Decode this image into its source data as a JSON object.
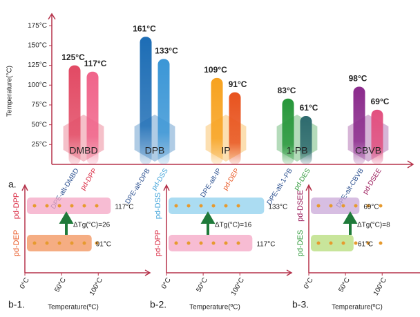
{
  "chart_data": [
    {
      "type": "bar",
      "panel_label": "a.",
      "y_label": "Temperature(°C)",
      "ylim": [
        0,
        190
      ],
      "yticks": [
        {
          "value": 25,
          "label": "25°C"
        },
        {
          "value": 50,
          "label": "50°C"
        },
        {
          "value": 75,
          "label": "75°C"
        },
        {
          "value": 100,
          "label": "100°C"
        },
        {
          "value": 125,
          "label": "125°C"
        },
        {
          "value": 150,
          "label": "150°C"
        },
        {
          "value": 175,
          "label": "175°C"
        }
      ],
      "categories": [
        "DPE-alt-DMBD",
        "pd-DPP",
        "DPE-alt-DPB",
        "pd-DSS",
        "DPE-alt-IP",
        "pd-DEP",
        "DPE-alt-1-PB",
        "pd-DES",
        "DPE-alt-CBVB",
        "pd-DSEE"
      ],
      "values": [
        125,
        117,
        161,
        133,
        109,
        91,
        83,
        61,
        98,
        69
      ],
      "value_labels": [
        "125°C",
        "117°C",
        "161°C",
        "133°C",
        "109°C",
        "91°C",
        "83°C",
        "61°C",
        "98°C",
        "69°C"
      ],
      "colors": [
        "#e24a64",
        "#f0648a",
        "#1d6db5",
        "#3b96d6",
        "#f7a21f",
        "#e8531e",
        "#27973a",
        "#2d6a6e",
        "#8b2b8c",
        "#e2507f"
      ],
      "label_colors": [
        "#2a4f8f",
        "#d8203a",
        "#2a4f8f",
        "#3aa0d8",
        "#2a4f8f",
        "#e8531e",
        "#2a4f8f",
        "#2f9a3a",
        "#2a4f8f",
        "#9a1a5a"
      ],
      "groups": [
        "DMBD",
        "DPB",
        "IP",
        "1-PB",
        "CBVB"
      ]
    },
    {
      "type": "hbar",
      "panel_label": "b-1.",
      "x_label": "Temperature(ºC)",
      "xlim": [
        0,
        160
      ],
      "xticks": [
        {
          "value": 0,
          "label": "0°C"
        },
        {
          "value": 50,
          "label": "50°C"
        },
        {
          "value": 100,
          "label": "100°C"
        }
      ],
      "categories": [
        "pd-DEP",
        "pd-DPP"
      ],
      "values": [
        91,
        117
      ],
      "value_labels": [
        "91°C",
        "117°C"
      ],
      "colors": [
        "#f2925a",
        "#f4a6c4"
      ],
      "label_colors": [
        "#e8531e",
        "#d8203a"
      ],
      "annotation": "ΔTg(°C)=26"
    },
    {
      "type": "hbar",
      "panel_label": "b-2.",
      "x_label": "Temperature(ºC)",
      "xlim": [
        0,
        160
      ],
      "xticks": [
        {
          "value": 0,
          "label": "0°C"
        },
        {
          "value": 50,
          "label": "50°C"
        },
        {
          "value": 100,
          "label": "100°C"
        }
      ],
      "categories": [
        "pd-DPP",
        "pd-DSS"
      ],
      "values": [
        117,
        133
      ],
      "value_labels": [
        "117°C",
        "133°C"
      ],
      "colors": [
        "#f4a6c4",
        "#8fd0ee"
      ],
      "label_colors": [
        "#d8203a",
        "#3aa0d8"
      ],
      "annotation": "ΔTg(°C)=16"
    },
    {
      "type": "hbar",
      "panel_label": "b-3.",
      "x_label": "Temperature(ºC)",
      "xlim": [
        0,
        160
      ],
      "xticks": [
        {
          "value": 0,
          "label": "0°C"
        },
        {
          "value": 50,
          "label": "50°C"
        },
        {
          "value": 100,
          "label": "100°C"
        }
      ],
      "categories": [
        "pd-DES",
        "pd-DSEE"
      ],
      "values": [
        61,
        69
      ],
      "value_labels": [
        "61°C",
        "69°C"
      ],
      "colors": [
        "#b6dc7a",
        "#c9a8d8"
      ],
      "label_colors": [
        "#2f9a3a",
        "#9a1a5a"
      ],
      "annotation": "ΔTg(°C)=8"
    }
  ]
}
